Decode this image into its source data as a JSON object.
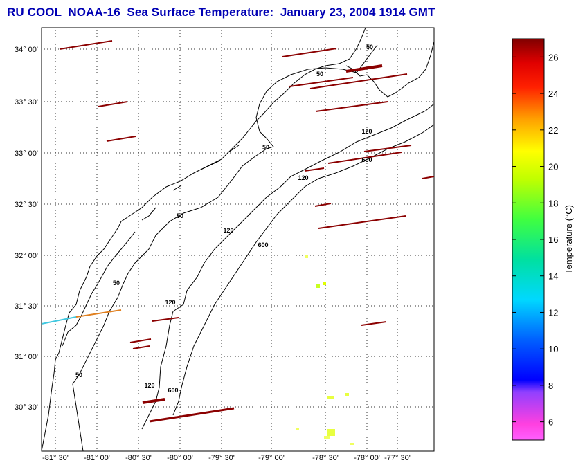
{
  "title": "RU COOL  NOAA-16  Sea Surface Temperature:  January 23, 2004 1914 GMT",
  "map": {
    "lat_ticks": [
      "34° 00'",
      "33° 30'",
      "33° 00'",
      "32° 30'",
      "32° 00'",
      "31° 30'",
      "31° 00'",
      "30° 30'"
    ],
    "lon_ticks": [
      "-81° 30'",
      "-81° 00'",
      "-80° 30'",
      "-80° 00'",
      "-79° 30'",
      "-79° 00'",
      "-78° 30'",
      "-78° 00'",
      "-77° 30'"
    ],
    "contour_labels": [
      "50",
      "50",
      "50",
      "50",
      "50",
      "50",
      "120",
      "120",
      "120",
      "120",
      "120",
      "600",
      "600",
      "600"
    ],
    "lat_range": [
      30.17,
      34.22
    ],
    "lon_range": [
      -81.5,
      -77.5
    ],
    "grid": true,
    "land_color": "#ffffff",
    "line_color": "#000000"
  },
  "colorbar": {
    "label": "Temperature (°C)",
    "ticks": [
      "26",
      "24",
      "22",
      "20",
      "18",
      "16",
      "14",
      "12",
      "10",
      "8",
      "6"
    ],
    "range": [
      5,
      27
    ]
  },
  "colors": {
    "title": "#0000b4",
    "warm_swath": "#8b0000",
    "near_shore_swath": "#e08020"
  }
}
